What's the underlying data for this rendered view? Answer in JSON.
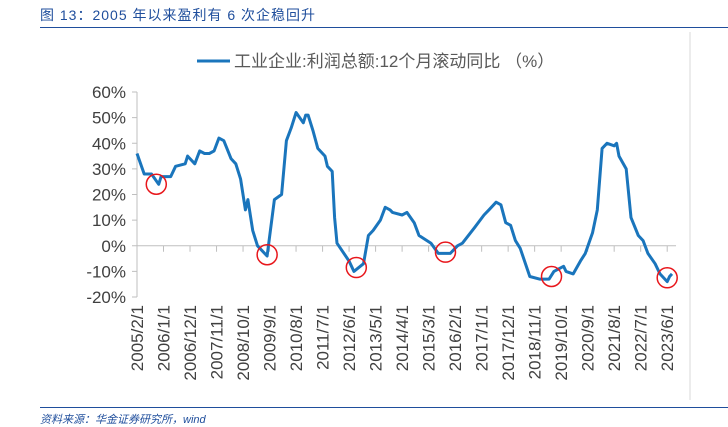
{
  "header": {
    "title": "图 13：2005 年以来盈利有 6 次企稳回升"
  },
  "footer": {
    "source": "资料来源：华金证券研究所，wind"
  },
  "colors": {
    "series": "#1a75bc",
    "circle": "#e8161b",
    "axis": "#bfbfbf",
    "title": "#1f4e9c"
  },
  "chart_data": {
    "type": "line",
    "title": "",
    "xlabel": "",
    "ylabel": "",
    "ylim": [
      -20,
      60
    ],
    "yticks": [
      60,
      50,
      40,
      30,
      20,
      10,
      0,
      -10,
      -20
    ],
    "ytick_labels": [
      "60%",
      "50%",
      "40%",
      "30%",
      "20%",
      "10%",
      "0%",
      "-10%",
      "-20%"
    ],
    "x_start": "2005-02",
    "x_end": "2023-08",
    "xtick_labels": [
      "2005/2/1",
      "2006/1/1",
      "2006/12/1",
      "2007/11/1",
      "2008/10/1",
      "2009/9/1",
      "2010/8/1",
      "2011/7/1",
      "2012/6/1",
      "2013/5/1",
      "2014/4/1",
      "2015/3/1",
      "2016/2/1",
      "2017/1/1",
      "2017/12/1",
      "2018/11/1",
      "2019/10/1",
      "2020/9/1",
      "2021/8/1",
      "2022/7/1",
      "2023/6/1"
    ],
    "legend": {
      "position": "top-center",
      "entries": [
        "工业企业:利润总额:12个月滚动同比 （%）"
      ]
    },
    "grid": false,
    "series": [
      {
        "name": "工业企业:利润总额:12个月滚动同比 （%）",
        "points": [
          [
            "2005-02",
            36
          ],
          [
            "2005-05",
            28
          ],
          [
            "2005-08",
            28
          ],
          [
            "2005-11",
            24
          ],
          [
            "2005-12",
            27
          ],
          [
            "2006-04",
            27
          ],
          [
            "2006-06",
            31
          ],
          [
            "2006-10",
            32
          ],
          [
            "2006-11",
            35
          ],
          [
            "2007-02",
            32
          ],
          [
            "2007-04",
            37
          ],
          [
            "2007-06",
            36
          ],
          [
            "2007-08",
            36
          ],
          [
            "2007-10",
            37
          ],
          [
            "2007-12",
            42
          ],
          [
            "2008-02",
            41
          ],
          [
            "2008-05",
            34
          ],
          [
            "2008-07",
            32
          ],
          [
            "2008-09",
            26
          ],
          [
            "2008-11",
            14
          ],
          [
            "2008-12",
            18
          ],
          [
            "2009-02",
            6
          ],
          [
            "2009-04",
            0
          ],
          [
            "2009-08",
            -4
          ],
          [
            "2009-11",
            18
          ],
          [
            "2010-02",
            20
          ],
          [
            "2010-04",
            41
          ],
          [
            "2010-06",
            46
          ],
          [
            "2010-08",
            52
          ],
          [
            "2010-11",
            48
          ],
          [
            "2010-12",
            51
          ],
          [
            "2011-01",
            51
          ],
          [
            "2011-03",
            45
          ],
          [
            "2011-05",
            38
          ],
          [
            "2011-08",
            35
          ],
          [
            "2011-09",
            31
          ],
          [
            "2011-11",
            29
          ],
          [
            "2011-12",
            11
          ],
          [
            "2012-01",
            1
          ],
          [
            "2012-06",
            -6
          ],
          [
            "2012-08",
            -10
          ],
          [
            "2012-12",
            -7
          ],
          [
            "2013-02",
            4
          ],
          [
            "2013-04",
            6
          ],
          [
            "2013-07",
            10
          ],
          [
            "2013-09",
            15
          ],
          [
            "2013-11",
            14
          ],
          [
            "2013-12",
            13
          ],
          [
            "2014-04",
            12
          ],
          [
            "2014-06",
            13
          ],
          [
            "2014-09",
            9
          ],
          [
            "2014-11",
            4
          ],
          [
            "2015-04",
            1
          ],
          [
            "2015-07",
            -3
          ],
          [
            "2015-12",
            -3
          ],
          [
            "2016-03",
            0
          ],
          [
            "2016-05",
            1
          ],
          [
            "2016-10",
            7
          ],
          [
            "2017-02",
            12
          ],
          [
            "2017-04",
            14
          ],
          [
            "2017-07",
            17
          ],
          [
            "2017-09",
            16
          ],
          [
            "2017-11",
            9
          ],
          [
            "2018-01",
            8
          ],
          [
            "2018-03",
            2
          ],
          [
            "2018-05",
            -1
          ],
          [
            "2018-09",
            -12
          ],
          [
            "2019-01",
            -13
          ],
          [
            "2019-05",
            -13
          ],
          [
            "2019-07",
            -10
          ],
          [
            "2019-11",
            -8
          ],
          [
            "2019-12",
            -10
          ],
          [
            "2020-03",
            -11
          ],
          [
            "2020-06",
            -6
          ],
          [
            "2020-08",
            -3
          ],
          [
            "2020-11",
            5
          ],
          [
            "2021-01",
            14
          ],
          [
            "2021-03",
            38
          ],
          [
            "2021-05",
            40
          ],
          [
            "2021-08",
            39
          ],
          [
            "2021-09",
            40
          ],
          [
            "2021-10",
            35
          ],
          [
            "2022-01",
            30
          ],
          [
            "2022-03",
            11
          ],
          [
            "2022-06",
            4
          ],
          [
            "2022-08",
            2
          ],
          [
            "2022-10",
            -3
          ],
          [
            "2023-01",
            -7
          ],
          [
            "2023-03",
            -11
          ],
          [
            "2023-06",
            -14
          ],
          [
            "2023-07",
            -12
          ],
          [
            "2023-08",
            -11
          ]
        ]
      }
    ],
    "annotations": [
      {
        "type": "circle",
        "x": "2005-10",
        "y": 24
      },
      {
        "type": "circle",
        "x": "2009-08",
        "y": -3.5
      },
      {
        "type": "circle",
        "x": "2012-09",
        "y": -8.5
      },
      {
        "type": "circle",
        "x": "2015-10",
        "y": -2.5
      },
      {
        "type": "circle",
        "x": "2019-06",
        "y": -12
      },
      {
        "type": "circle",
        "x": "2023-06",
        "y": -12.5
      }
    ]
  }
}
